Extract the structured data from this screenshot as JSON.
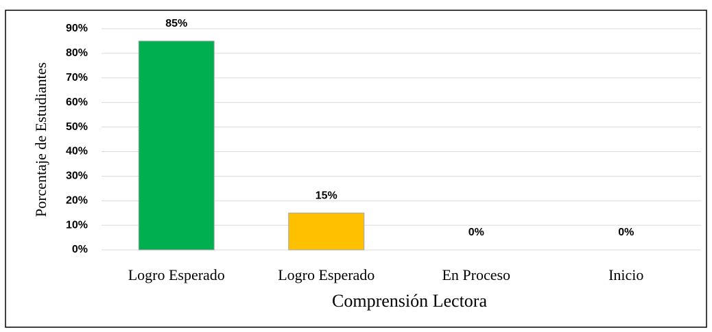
{
  "chart_data": {
    "type": "bar",
    "categories": [
      "Logro Esperado",
      "Logro Esperado",
      "En Proceso",
      "Inicio"
    ],
    "values": [
      85,
      15,
      0,
      0
    ],
    "value_labels": [
      "85%",
      "15%",
      "0%",
      "0%"
    ],
    "colors": [
      "#00b050",
      "#ffc000",
      "#a5a5a5",
      "#4472c4"
    ],
    "x_label": "Comprensión Lectora",
    "y_label": "Porcentaje de Estudiantes",
    "ylim": [
      0,
      90
    ],
    "yticks": [
      {
        "value": 0,
        "label": "0%"
      },
      {
        "value": 10,
        "label": "10%"
      },
      {
        "value": 20,
        "label": "20%"
      },
      {
        "value": 30,
        "label": "30%"
      },
      {
        "value": 40,
        "label": "40%"
      },
      {
        "value": 50,
        "label": "50%"
      },
      {
        "value": 60,
        "label": "60%"
      },
      {
        "value": 70,
        "label": "70%"
      },
      {
        "value": 80,
        "label": "80%"
      },
      {
        "value": 90,
        "label": "90%"
      }
    ],
    "grid": true
  }
}
